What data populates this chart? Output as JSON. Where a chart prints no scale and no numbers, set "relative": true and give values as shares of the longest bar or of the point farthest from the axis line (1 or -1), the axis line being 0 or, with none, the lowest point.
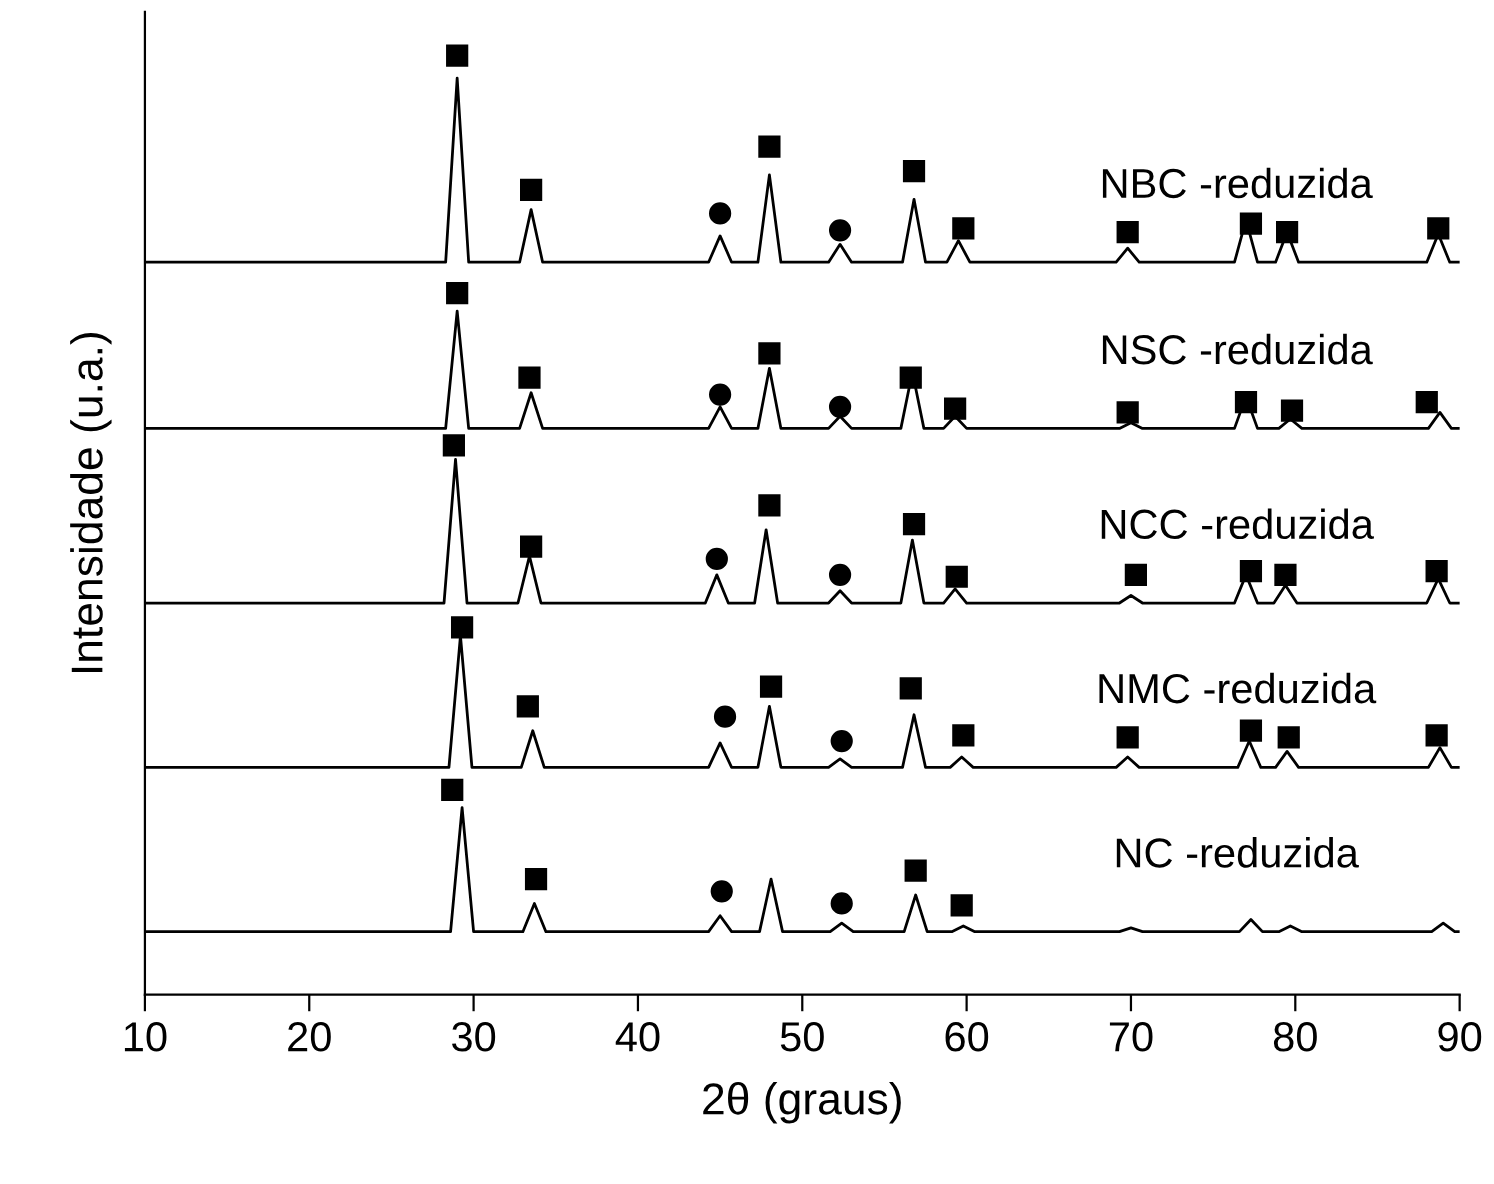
{
  "chart_data": {
    "type": "line",
    "relative": true,
    "xlabel": "2θ (graus)",
    "ylabel": "Intensidade (u.a.)",
    "xlim": [
      10,
      90
    ],
    "xticks": [
      10,
      20,
      30,
      40,
      50,
      60,
      70,
      80,
      90
    ],
    "tick_labels": "x",
    "grid": false,
    "legend": false,
    "marker": "none",
    "line_style": "solid",
    "series": [
      {
        "name": "NBC -reduzida",
        "color": "#000000",
        "x": [
          10,
          28.3,
          29,
          29.7,
          32.8,
          33.5,
          34.2,
          44.3,
          45,
          45.7,
          47.3,
          48,
          48.7,
          51.6,
          52.3,
          53,
          56.1,
          56.8,
          57.5,
          58.8,
          59.5,
          60.2,
          69.1,
          69.8,
          70.5,
          76.3,
          77,
          77.7,
          78.8,
          79.5,
          80.2,
          88,
          88.7,
          89.4,
          90
        ],
        "values": [
          0.78,
          0.78,
          0.976,
          0.78,
          0.78,
          0.836,
          0.78,
          0.78,
          0.808,
          0.78,
          0.78,
          0.873,
          0.78,
          0.78,
          0.799,
          0.78,
          0.78,
          0.847,
          0.78,
          0.78,
          0.803,
          0.78,
          0.78,
          0.795,
          0.78,
          0.78,
          0.825,
          0.78,
          0.78,
          0.812,
          0.78,
          0.78,
          0.81,
          0.78,
          0.78
        ]
      },
      {
        "name": "NSC -reduzida",
        "color": "#000000",
        "x": [
          10,
          28.3,
          29,
          29.7,
          32.8,
          33.5,
          34.2,
          44.3,
          45,
          45.7,
          47.3,
          48,
          48.7,
          51.6,
          52.3,
          53,
          56.0,
          56.7,
          57.4,
          58.6,
          59.3,
          60.0,
          69.3,
          70,
          70.7,
          76.3,
          77,
          77.7,
          79.0,
          79.7,
          80.4,
          88.1,
          88.8,
          89.5,
          90
        ],
        "values": [
          0.603,
          0.603,
          0.728,
          0.603,
          0.603,
          0.641,
          0.603,
          0.603,
          0.626,
          0.603,
          0.603,
          0.667,
          0.603,
          0.603,
          0.616,
          0.603,
          0.603,
          0.663,
          0.603,
          0.603,
          0.616,
          0.603,
          0.603,
          0.609,
          0.603,
          0.603,
          0.637,
          0.603,
          0.603,
          0.613,
          0.603,
          0.603,
          0.62,
          0.603,
          0.603
        ]
      },
      {
        "name": "NCC -reduzida",
        "color": "#000000",
        "x": [
          10,
          28.2,
          28.9,
          29.6,
          32.7,
          33.4,
          34.1,
          44.1,
          44.8,
          45.5,
          47.1,
          47.8,
          48.5,
          51.6,
          52.3,
          53,
          56.0,
          56.7,
          57.4,
          58.6,
          59.3,
          60.0,
          69.3,
          70,
          70.7,
          76.3,
          77,
          77.7,
          78.7,
          79.4,
          80.1,
          88.0,
          88.7,
          89.4,
          90
        ],
        "values": [
          0.417,
          0.417,
          0.57,
          0.417,
          0.417,
          0.467,
          0.417,
          0.417,
          0.447,
          0.417,
          0.417,
          0.495,
          0.417,
          0.417,
          0.43,
          0.417,
          0.417,
          0.484,
          0.417,
          0.417,
          0.432,
          0.417,
          0.417,
          0.425,
          0.417,
          0.417,
          0.447,
          0.417,
          0.417,
          0.436,
          0.417,
          0.417,
          0.443,
          0.417,
          0.417
        ]
      },
      {
        "name": "NMC -reduzida",
        "color": "#000000",
        "x": [
          10,
          28.5,
          29.2,
          29.9,
          32.9,
          33.6,
          34.3,
          44.3,
          45,
          45.7,
          47.3,
          48,
          48.7,
          51.6,
          52.3,
          53,
          56.1,
          56.8,
          57.5,
          59.0,
          59.7,
          60.4,
          69.1,
          69.8,
          70.5,
          76.5,
          77.2,
          77.9,
          78.8,
          79.5,
          80.2,
          88.1,
          88.8,
          89.5,
          90
        ],
        "values": [
          0.242,
          0.242,
          0.382,
          0.242,
          0.242,
          0.281,
          0.242,
          0.242,
          0.268,
          0.242,
          0.242,
          0.307,
          0.242,
          0.242,
          0.251,
          0.242,
          0.242,
          0.298,
          0.242,
          0.242,
          0.253,
          0.242,
          0.242,
          0.253,
          0.242,
          0.242,
          0.27,
          0.242,
          0.242,
          0.259,
          0.242,
          0.242,
          0.263,
          0.242,
          0.242
        ]
      },
      {
        "name": "NC -reduzida",
        "color": "#000000",
        "x": [
          10,
          28.6,
          29.3,
          30.0,
          33.0,
          33.7,
          34.4,
          44.3,
          45,
          45.7,
          47.4,
          48.1,
          48.8,
          51.7,
          52.4,
          53.1,
          56.2,
          56.9,
          57.6,
          59.1,
          59.8,
          60.5,
          69.3,
          70,
          70.7,
          76.6,
          77.3,
          78.0,
          79.0,
          79.7,
          80.4,
          88.3,
          89,
          89.7,
          90
        ],
        "values": [
          0.067,
          0.067,
          0.199,
          0.067,
          0.067,
          0.097,
          0.067,
          0.067,
          0.084,
          0.067,
          0.067,
          0.123,
          0.067,
          0.067,
          0.076,
          0.067,
          0.067,
          0.106,
          0.067,
          0.067,
          0.073,
          0.067,
          0.067,
          0.071,
          0.067,
          0.067,
          0.08,
          0.067,
          0.067,
          0.073,
          0.067,
          0.067,
          0.076,
          0.067,
          0.067
        ]
      },
      {
        "type": "scatter",
        "marker": "square",
        "color": "#000000",
        "x": [
          29,
          33.5,
          48,
          56.8,
          59.8,
          69.8,
          77.3,
          79.5,
          88.7,
          29,
          33.4,
          48,
          56.6,
          59.3,
          69.8,
          77,
          79.8,
          88,
          28.8,
          33.5,
          48,
          56.8,
          59.4,
          70.3,
          77.3,
          79.4,
          88.6,
          29.3,
          33.3,
          48.1,
          56.6,
          59.8,
          69.8,
          77.3,
          79.6,
          88.6,
          28.7,
          33.8,
          56.9,
          59.7
        ],
        "values": [
          1.0,
          0.857,
          0.903,
          0.877,
          0.816,
          0.812,
          0.821,
          0.812,
          0.816,
          0.747,
          0.657,
          0.683,
          0.657,
          0.624,
          0.62,
          0.631,
          0.622,
          0.631,
          0.585,
          0.477,
          0.521,
          0.501,
          0.445,
          0.447,
          0.451,
          0.447,
          0.451,
          0.391,
          0.307,
          0.328,
          0.326,
          0.276,
          0.274,
          0.281,
          0.274,
          0.276,
          0.218,
          0.123,
          0.132,
          0.095
        ]
      },
      {
        "type": "scatter",
        "marker": "circle",
        "color": "#000000",
        "x": [
          45,
          52.3,
          45,
          52.3,
          44.8,
          52.3,
          45.3,
          52.4,
          45.1,
          52.4
        ],
        "values": [
          0.832,
          0.814,
          0.639,
          0.626,
          0.464,
          0.447,
          0.296,
          0.27,
          0.11,
          0.097
        ]
      }
    ]
  }
}
